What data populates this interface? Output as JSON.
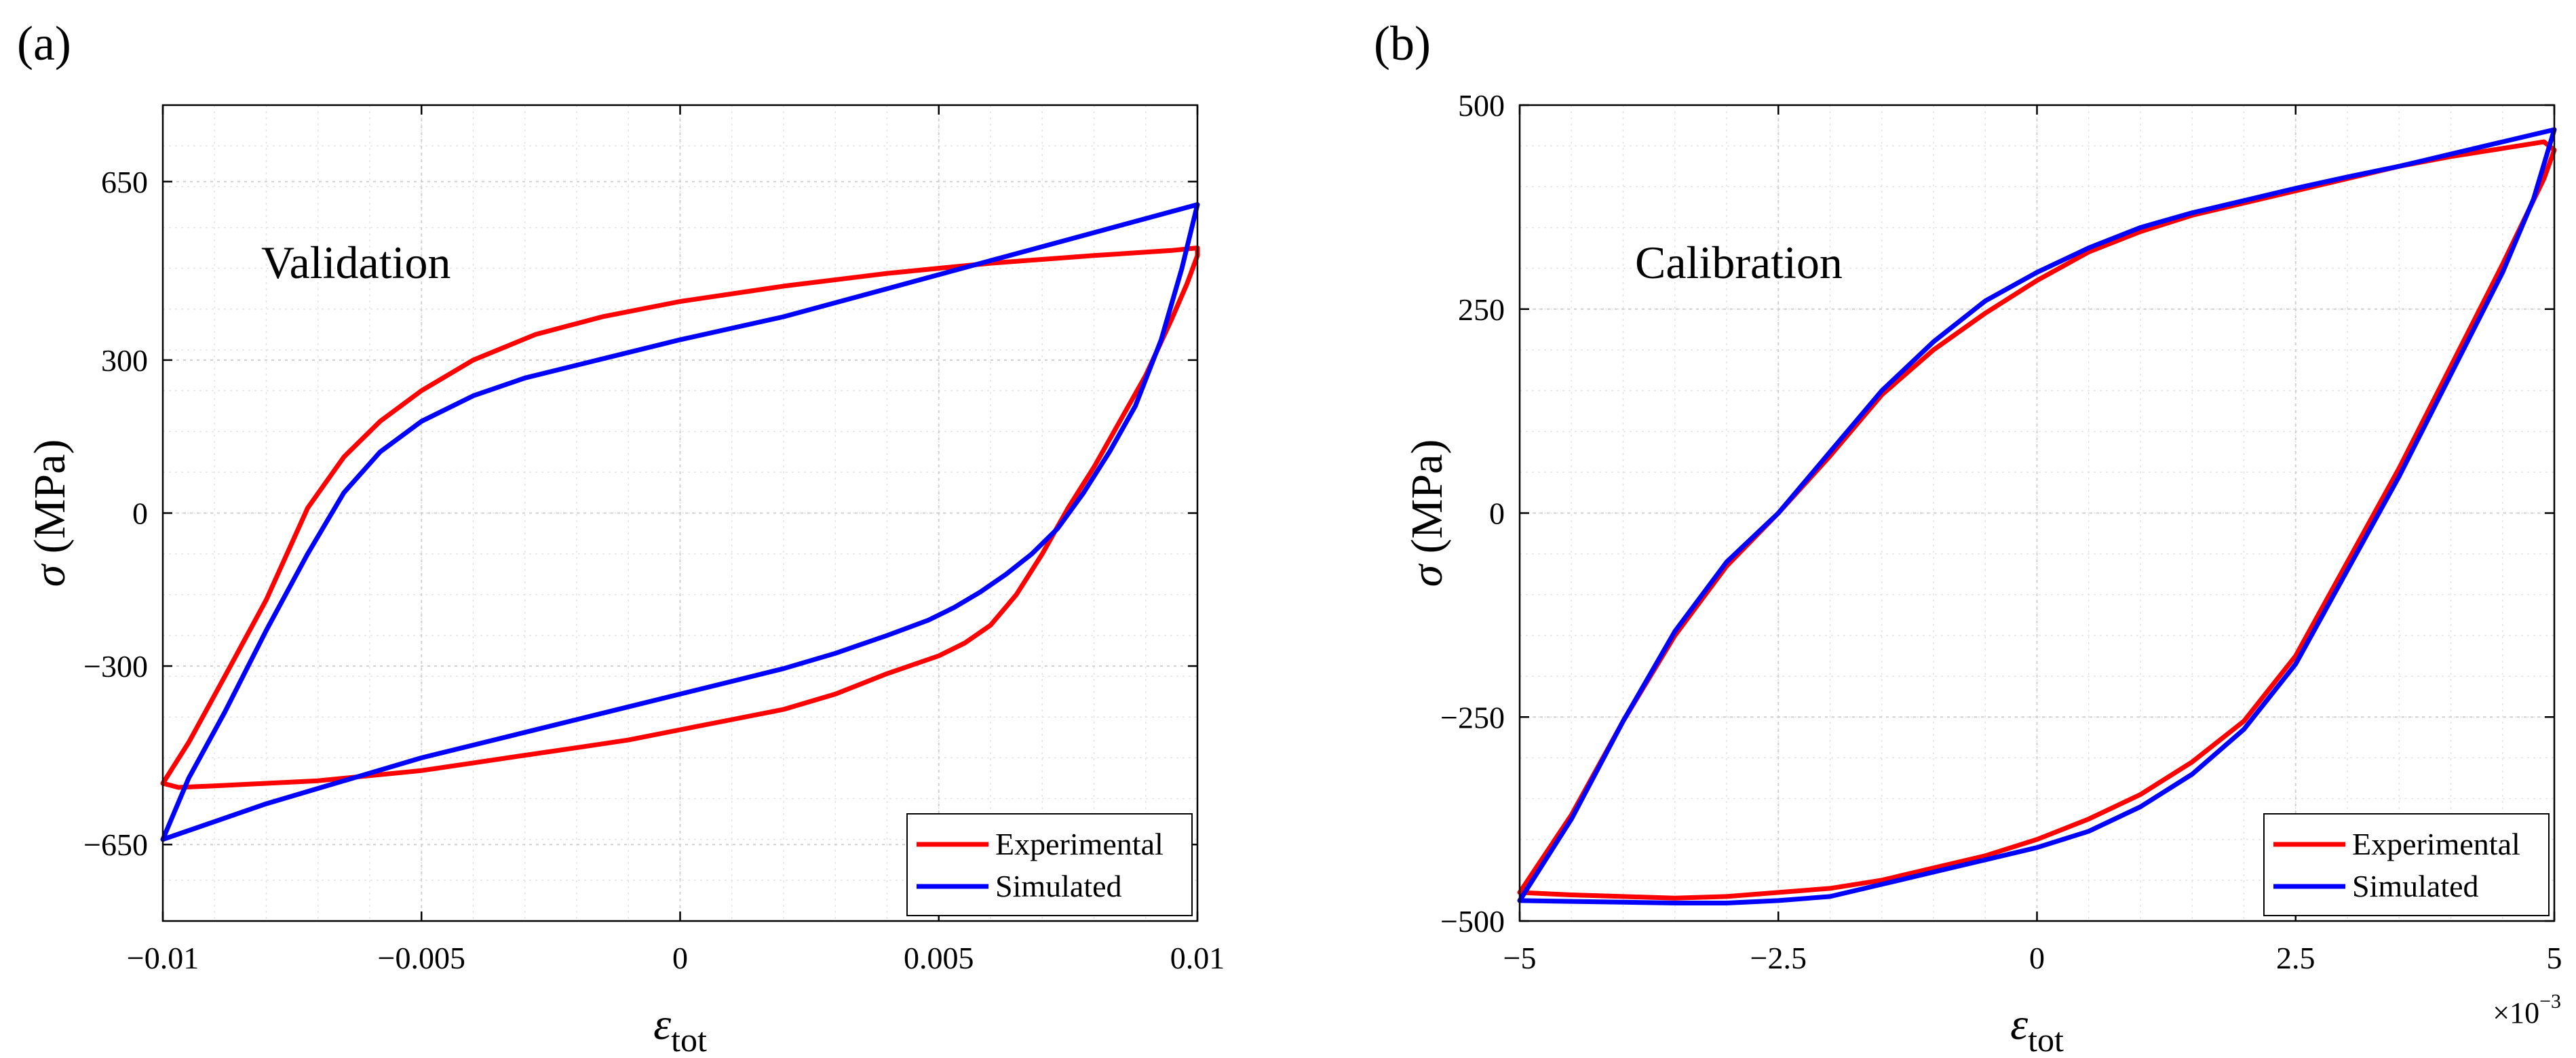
{
  "chart_data": [
    {
      "type": "line",
      "panel_label": "(a)",
      "annotation": "Validation",
      "xlabel_symbol": "ε",
      "xlabel_sub": "tot",
      "ylabel_symbol": "σ",
      "ylabel_unit": " (MPa)",
      "xlim": [
        -0.01,
        0.01
      ],
      "ylim": [
        -800,
        800
      ],
      "xticks": [
        -0.01,
        -0.005,
        0,
        0.005,
        0.01
      ],
      "xtick_labels": [
        "−0.01",
        "−0.005",
        "0",
        "0.005",
        "0.01"
      ],
      "yticks": [
        -650,
        -300,
        0,
        300,
        650
      ],
      "ytick_labels": [
        "−650",
        "−300",
        "0",
        "300",
        "650"
      ],
      "x_multiplier": null,
      "grid": true,
      "legend_position": "bottom-right",
      "series": [
        {
          "name": "Experimental",
          "color": "#ff0000",
          "x": [
            -0.01,
            -0.0095,
            -0.0088,
            -0.008,
            -0.0072,
            -0.0065,
            -0.0058,
            -0.005,
            -0.004,
            -0.0028,
            -0.0015,
            0.0,
            0.002,
            0.004,
            0.006,
            0.008,
            0.0095,
            0.01,
            0.01,
            0.0098,
            0.0095,
            0.009,
            0.0085,
            0.008,
            0.0075,
            0.007,
            0.0065,
            0.006,
            0.0055,
            0.005,
            0.004,
            0.003,
            0.002,
            0.001,
            0.0,
            -0.001,
            -0.002,
            -0.003,
            -0.004,
            -0.005,
            -0.006,
            -0.007,
            -0.008,
            -0.009,
            -0.0097,
            -0.01
          ],
          "y": [
            -530,
            -450,
            -320,
            -170,
            10,
            110,
            180,
            240,
            300,
            350,
            385,
            415,
            445,
            470,
            490,
            505,
            515,
            520,
            505,
            450,
            380,
            270,
            180,
            90,
            10,
            -80,
            -160,
            -220,
            -255,
            -280,
            -315,
            -355,
            -385,
            -405,
            -425,
            -445,
            -460,
            -475,
            -490,
            -505,
            -515,
            -525,
            -530,
            -535,
            -538,
            -530
          ]
        },
        {
          "name": "Simulated",
          "color": "#0000ff",
          "x": [
            -0.01,
            -0.0095,
            -0.0088,
            -0.008,
            -0.0072,
            -0.0065,
            -0.0058,
            -0.005,
            -0.004,
            -0.003,
            -0.002,
            -0.001,
            0.0,
            0.002,
            0.004,
            0.006,
            0.008,
            0.01,
            0.0097,
            0.0093,
            0.0088,
            0.0083,
            0.0078,
            0.0073,
            0.0068,
            0.0063,
            0.0058,
            0.0053,
            0.0048,
            0.004,
            0.003,
            0.002,
            0.001,
            0.0,
            -0.001,
            -0.002,
            -0.003,
            -0.004,
            -0.005,
            -0.006,
            -0.007,
            -0.008,
            -0.009,
            -0.01
          ],
          "y": [
            -640,
            -520,
            -390,
            -230,
            -80,
            40,
            120,
            180,
            230,
            265,
            290,
            315,
            340,
            385,
            440,
            495,
            550,
            605,
            480,
            340,
            210,
            120,
            40,
            -30,
            -80,
            -120,
            -155,
            -185,
            -210,
            -240,
            -275,
            -305,
            -330,
            -355,
            -380,
            -405,
            -430,
            -455,
            -480,
            -510,
            -540,
            -570,
            -605,
            -640
          ]
        }
      ]
    },
    {
      "type": "line",
      "panel_label": "(b)",
      "annotation": "Calibration",
      "xlabel_symbol": "ε",
      "xlabel_sub": "tot",
      "ylabel_symbol": "σ",
      "ylabel_unit": " (MPa)",
      "xlim": [
        -5,
        5
      ],
      "ylim": [
        -500,
        500
      ],
      "xticks": [
        -5,
        -2.5,
        0,
        2.5,
        5
      ],
      "xtick_labels": [
        "−5",
        "−2.5",
        "0",
        "2.5",
        "5"
      ],
      "yticks": [
        -500,
        -250,
        0,
        250,
        500
      ],
      "ytick_labels": [
        "−500",
        "−250",
        "0",
        "250",
        "500"
      ],
      "x_multiplier": {
        "base": "×10",
        "exponent": "−3"
      },
      "grid": true,
      "legend_position": "bottom-right",
      "series": [
        {
          "name": "Experimental",
          "color": "#ff0000",
          "x": [
            -5.0,
            -4.5,
            -4.0,
            -3.5,
            -3.0,
            -2.5,
            -2.0,
            -1.5,
            -1.0,
            -0.5,
            0.0,
            0.5,
            1.0,
            1.5,
            2.0,
            2.5,
            3.0,
            3.5,
            4.0,
            4.5,
            4.9,
            5.0,
            4.9,
            4.5,
            4.0,
            3.5,
            3.0,
            2.5,
            2.0,
            1.5,
            1.0,
            0.5,
            0.0,
            -0.5,
            -1.0,
            -1.5,
            -2.0,
            -2.5,
            -3.0,
            -3.5,
            -4.0,
            -4.5,
            -5.0
          ],
          "y": [
            -465,
            -370,
            -255,
            -150,
            -65,
            0,
            70,
            145,
            200,
            245,
            285,
            320,
            345,
            365,
            380,
            395,
            410,
            425,
            437,
            447,
            455,
            445,
            410,
            305,
            180,
            55,
            -60,
            -175,
            -255,
            -305,
            -345,
            -375,
            -400,
            -420,
            -435,
            -450,
            -460,
            -465,
            -470,
            -472,
            -470,
            -468,
            -465
          ]
        },
        {
          "name": "Simulated",
          "color": "#0000ff",
          "x": [
            -5.0,
            -4.5,
            -4.0,
            -3.5,
            -3.0,
            -2.5,
            -2.0,
            -1.5,
            -1.0,
            -0.5,
            0.0,
            0.5,
            1.0,
            1.5,
            2.0,
            2.5,
            3.0,
            3.5,
            4.0,
            4.5,
            5.0,
            4.8,
            4.5,
            4.0,
            3.5,
            3.0,
            2.5,
            2.0,
            1.5,
            1.0,
            0.5,
            0.0,
            -0.5,
            -1.0,
            -1.5,
            -2.0,
            -2.5,
            -3.0,
            -3.5,
            -4.0,
            -4.5,
            -5.0
          ],
          "y": [
            -475,
            -375,
            -255,
            -145,
            -60,
            0,
            75,
            150,
            210,
            260,
            295,
            325,
            350,
            368,
            383,
            398,
            412,
            425,
            440,
            455,
            470,
            385,
            295,
            170,
            45,
            -70,
            -185,
            -265,
            -320,
            -360,
            -390,
            -410,
            -425,
            -440,
            -455,
            -470,
            -475,
            -478,
            -478,
            -477,
            -476,
            -475
          ]
        }
      ]
    }
  ]
}
